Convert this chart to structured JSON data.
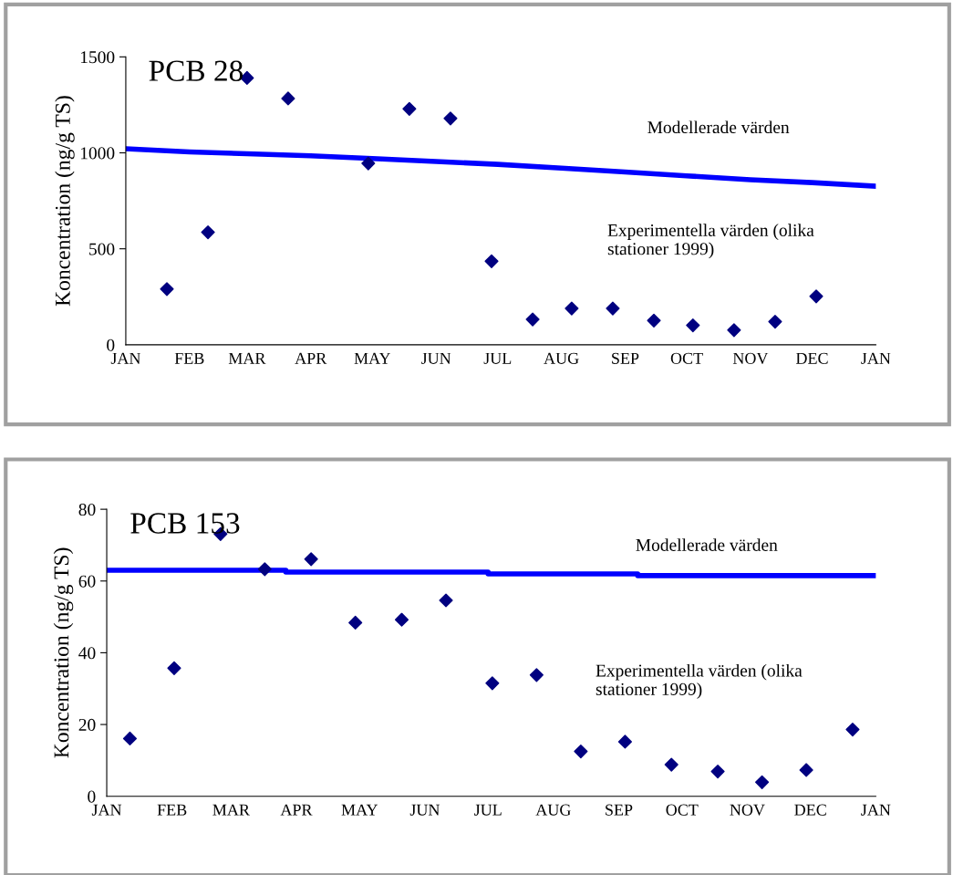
{
  "chart_data": [
    {
      "type": "scatter",
      "title": "PCB 28",
      "ylabel": "Koncentration (ng/g TS)",
      "xlim": [
        "1999-01-01",
        "2000-01-01"
      ],
      "ylim": [
        0,
        1500
      ],
      "yticks": [
        0,
        500,
        1000,
        1500
      ],
      "xticks": [
        {
          "value": "1999-01-01",
          "label": "JAN"
        },
        {
          "value": "1999-02-01",
          "label": "FEB"
        },
        {
          "value": "1999-03-01",
          "label": "MAR"
        },
        {
          "value": "1999-04-01",
          "label": "APR"
        },
        {
          "value": "1999-05-01",
          "label": "MAY"
        },
        {
          "value": "1999-06-01",
          "label": "JUN"
        },
        {
          "value": "1999-07-01",
          "label": "JUL"
        },
        {
          "value": "1999-08-01",
          "label": "AUG"
        },
        {
          "value": "1999-09-01",
          "label": "SEP"
        },
        {
          "value": "1999-10-01",
          "label": "OCT"
        },
        {
          "value": "1999-11-01",
          "label": "NOV"
        },
        {
          "value": "1999-12-01",
          "label": "DEC"
        },
        {
          "value": "2000-01-01",
          "label": "JAN"
        }
      ],
      "series": [
        {
          "type": "line",
          "color": "#0000ff",
          "x": [
            "1999-01-01",
            "1999-02-01",
            "1999-03-01",
            "1999-04-01",
            "1999-05-01",
            "1999-06-01",
            "1999-07-01",
            "1999-08-01",
            "1999-09-01",
            "1999-10-01",
            "1999-11-01",
            "1999-12-01",
            "2000-01-01"
          ],
          "values": [
            1021,
            1005,
            995,
            985,
            970,
            955,
            940,
            920,
            900,
            880,
            860,
            845,
            826
          ]
        },
        {
          "color": "#000080",
          "marker": "diamond",
          "x": [
            "1999-01-21",
            "1999-02-10",
            "1999-03-01",
            "1999-03-21",
            "1999-04-29",
            "1999-05-19",
            "1999-06-08",
            "1999-06-28",
            "1999-07-18",
            "1999-08-06",
            "1999-08-26",
            "1999-09-15",
            "1999-10-04",
            "1999-10-24",
            "1999-11-13",
            "1999-12-03"
          ],
          "values": [
            290,
            586,
            1390,
            1283,
            945,
            1229,
            1179,
            435,
            132,
            189,
            189,
            126,
            101,
            76,
            120,
            252
          ]
        }
      ],
      "annotations": [
        "Modellerade värden",
        "Experimentella värden (olika\nstationer 1999)"
      ],
      "grid": false,
      "legend": false
    },
    {
      "type": "scatter",
      "title": "PCB 153",
      "ylabel": "Koncentration (ng/g TS)",
      "xlim": [
        "1999-01-01",
        "2000-01-01"
      ],
      "ylim": [
        0,
        80
      ],
      "yticks": [
        0,
        20,
        40,
        60,
        80
      ],
      "xticks": [
        {
          "value": "1999-01-01",
          "label": "JAN"
        },
        {
          "value": "1999-02-01",
          "label": "FEB"
        },
        {
          "value": "1999-03-01",
          "label": "MAR"
        },
        {
          "value": "1999-04-01",
          "label": "APR"
        },
        {
          "value": "1999-05-01",
          "label": "MAY"
        },
        {
          "value": "1999-06-01",
          "label": "JUN"
        },
        {
          "value": "1999-07-01",
          "label": "JUL"
        },
        {
          "value": "1999-08-01",
          "label": "AUG"
        },
        {
          "value": "1999-09-01",
          "label": "SEP"
        },
        {
          "value": "1999-10-01",
          "label": "OCT"
        },
        {
          "value": "1999-11-01",
          "label": "NOV"
        },
        {
          "value": "1999-12-01",
          "label": "DEC"
        },
        {
          "value": "2000-01-01",
          "label": "JAN"
        }
      ],
      "series": [
        {
          "type": "step",
          "color": "#0000ff",
          "x": [
            "1999-01-01",
            "1999-03-27",
            "1999-07-01",
            "1999-09-10",
            "2000-01-01"
          ],
          "values": [
            63,
            62.5,
            62,
            61.5,
            61.5
          ]
        },
        {
          "color": "#000080",
          "marker": "diamond",
          "x": [
            "1999-01-12",
            "1999-02-02",
            "1999-02-24",
            "1999-03-17",
            "1999-04-08",
            "1999-04-29",
            "1999-05-21",
            "1999-06-11",
            "1999-07-03",
            "1999-07-24",
            "1999-08-14",
            "1999-09-04",
            "1999-09-26",
            "1999-10-18",
            "1999-11-08",
            "1999-11-29",
            "1999-12-21"
          ],
          "values": [
            16.1,
            35.7,
            73.1,
            63.3,
            66.1,
            48.4,
            49.2,
            54.6,
            31.5,
            33.8,
            12.5,
            15.2,
            8.8,
            6.9,
            3.9,
            7.3,
            18.6
          ]
        }
      ],
      "annotations": [
        "Modellerade värden",
        "Experimentella värden (olika\nstationer 1999)"
      ],
      "grid": false,
      "legend": false
    }
  ]
}
